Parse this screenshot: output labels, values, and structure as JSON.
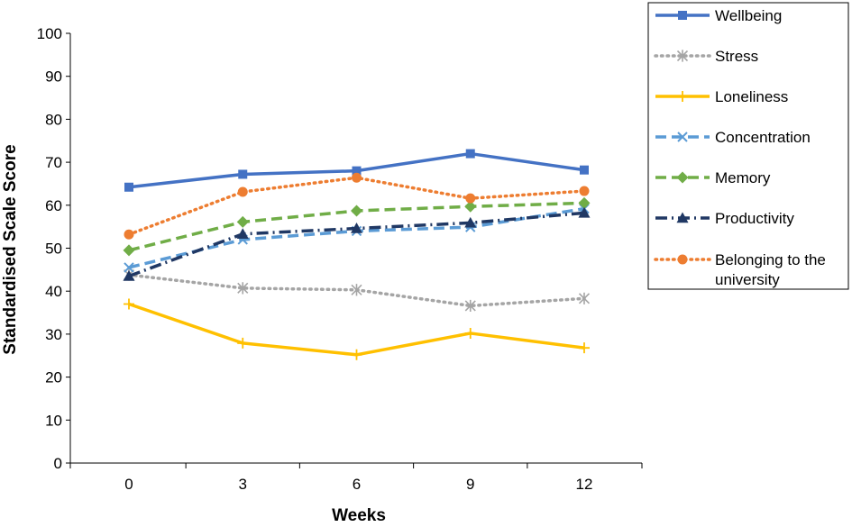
{
  "chart_data": {
    "type": "line",
    "title": "",
    "xlabel": "Weeks",
    "ylabel": "Standardised Scale Score",
    "x": [
      0,
      3,
      6,
      9,
      12
    ],
    "x_tick_labels": [
      "0",
      "3",
      "6",
      "9",
      "12"
    ],
    "ylim": [
      0,
      100
    ],
    "y_ticks": [
      0,
      10,
      20,
      30,
      40,
      50,
      60,
      70,
      80,
      90,
      100
    ],
    "grid": false,
    "legend_position": "right",
    "series": [
      {
        "name": "Wellbeing",
        "values": [
          64.2,
          67.2,
          68.0,
          72.0,
          68.2
        ],
        "color": "#4472C4",
        "dash": "solid",
        "marker": "square"
      },
      {
        "name": "Stress",
        "values": [
          43.8,
          40.7,
          40.3,
          36.6,
          38.3
        ],
        "color": "#A5A5A5",
        "dash": "dotted",
        "marker": "asterisk"
      },
      {
        "name": "Loneliness",
        "values": [
          37.0,
          27.9,
          25.2,
          30.2,
          26.8
        ],
        "color": "#FFC000",
        "dash": "solid",
        "marker": "plus"
      },
      {
        "name": "Concentration",
        "values": [
          45.5,
          52.0,
          54.0,
          54.9,
          59.2
        ],
        "color": "#5B9BD5",
        "dash": "dashed",
        "marker": "cross"
      },
      {
        "name": "Memory",
        "values": [
          49.5,
          56.1,
          58.7,
          59.7,
          60.5
        ],
        "color": "#70AD47",
        "dash": "dashed",
        "marker": "diamond"
      },
      {
        "name": "Productivity",
        "values": [
          43.5,
          53.3,
          54.6,
          55.9,
          58.2
        ],
        "color": "#203864",
        "dash": "dashdot",
        "marker": "triangle"
      },
      {
        "name": "Belonging to the university",
        "values": [
          53.2,
          63.1,
          66.4,
          61.6,
          63.3
        ],
        "color": "#ED7D31",
        "dash": "dotted",
        "marker": "circle"
      }
    ]
  }
}
